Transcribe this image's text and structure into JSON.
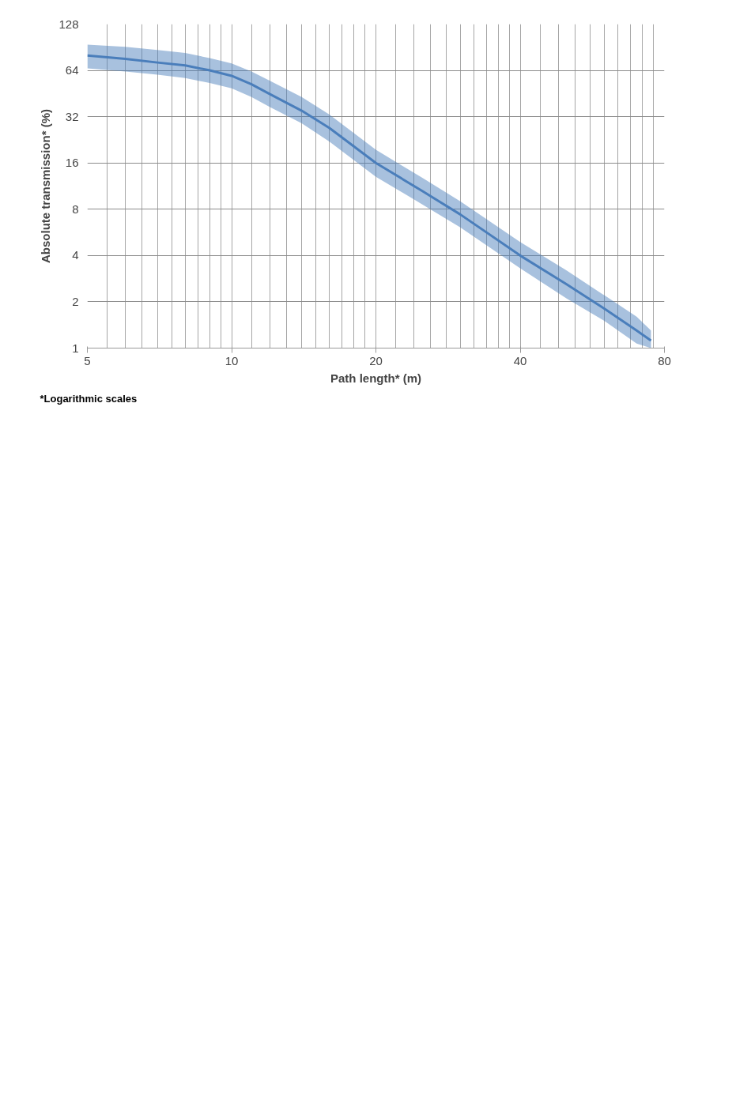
{
  "chart_data": {
    "type": "line",
    "xlabel": "Path length* (m)",
    "ylabel": "Absolute transmission* (%)",
    "annotations": [
      "*Logarithmic scales"
    ],
    "log": "xy",
    "xlim": [
      5,
      80
    ],
    "ylim": [
      1,
      128
    ],
    "xticks": [
      5,
      {
        "value": 5.5,
        "label": null
      },
      {
        "value": 6,
        "label": null
      },
      {
        "value": 6.5,
        "label": null
      },
      {
        "value": 7,
        "label": null
      },
      {
        "value": 7.5,
        "label": null
      },
      {
        "value": 8,
        "label": null
      },
      {
        "value": 8.5,
        "label": null
      },
      {
        "value": 9,
        "label": null
      },
      {
        "value": 9.5,
        "label": null
      },
      10,
      {
        "value": 11,
        "label": null
      },
      {
        "value": 12,
        "label": null
      },
      {
        "value": 13,
        "label": null
      },
      {
        "value": 14,
        "label": null
      },
      {
        "value": 15,
        "label": null
      },
      {
        "value": 16,
        "label": null
      },
      {
        "value": 17,
        "label": null
      },
      {
        "value": 18,
        "label": null
      },
      {
        "value": 19,
        "label": null
      },
      20,
      {
        "value": 22,
        "label": null
      },
      {
        "value": 24,
        "label": null
      },
      {
        "value": 26,
        "label": null
      },
      {
        "value": 28,
        "label": null
      },
      {
        "value": 30,
        "label": null
      },
      {
        "value": 32,
        "label": null
      },
      {
        "value": 34,
        "label": null
      },
      {
        "value": 36,
        "label": null
      },
      {
        "value": 38,
        "label": null
      },
      40,
      {
        "value": 44,
        "label": null
      },
      {
        "value": 48,
        "label": null
      },
      {
        "value": 52,
        "label": null
      },
      {
        "value": 56,
        "label": null
      },
      {
        "value": 60,
        "label": null
      },
      {
        "value": 64,
        "label": null
      },
      {
        "value": 68,
        "label": null
      },
      {
        "value": 72,
        "label": null
      },
      {
        "value": 76,
        "label": null
      },
      80
    ],
    "yticks": [
      1,
      2,
      4,
      8,
      16,
      32,
      64,
      128
    ],
    "grid": true,
    "marker": "none",
    "line_style": "solid",
    "series": [
      {
        "color": "#4a7ebb",
        "x": [
          5,
          6,
          7,
          8,
          9,
          10,
          11,
          12,
          14,
          16,
          20,
          25,
          30,
          40,
          50,
          60,
          70,
          75
        ],
        "values": [
          80,
          76,
          72,
          69,
          64,
          59,
          52,
          45,
          35,
          27,
          16,
          10.5,
          7.4,
          4,
          2.6,
          1.8,
          1.3,
          1.12
        ],
        "lower": [
          66,
          63,
          60,
          57,
          53,
          49,
          43,
          37,
          29,
          22,
          13,
          8.6,
          6.1,
          3.3,
          2.1,
          1.5,
          1.07,
          1.0
        ],
        "upper": [
          94,
          91,
          87,
          83,
          77,
          71,
          63,
          55,
          43,
          33,
          19.5,
          12.8,
          9,
          4.9,
          3.2,
          2.2,
          1.6,
          1.3
        ]
      }
    ]
  }
}
